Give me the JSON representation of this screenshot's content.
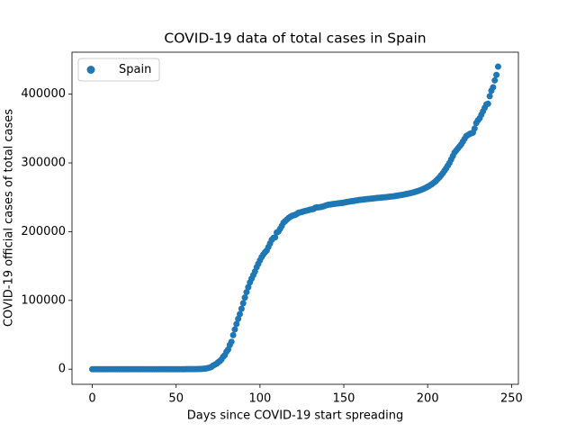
{
  "chart_data": {
    "type": "scatter",
    "title": "COVID-19 data of total cases in Spain",
    "xlabel": "Days since COVID-19 start spreading",
    "ylabel": "COVID-19 official cases of total cases",
    "legend": "upper left",
    "xlim": [
      -12.1,
      254.1
    ],
    "xticks": [
      0,
      50,
      100,
      150,
      200,
      250
    ],
    "ylim": [
      -22000,
      461000
    ],
    "yticks": [
      0,
      100000,
      200000,
      300000,
      400000
    ],
    "series": [
      {
        "name": "Spain",
        "color": "#1f77b4",
        "x": [
          0,
          1,
          2,
          3,
          4,
          5,
          6,
          7,
          8,
          9,
          10,
          11,
          12,
          13,
          14,
          15,
          16,
          17,
          18,
          19,
          20,
          21,
          22,
          23,
          24,
          25,
          26,
          27,
          28,
          29,
          30,
          31,
          32,
          33,
          34,
          35,
          36,
          37,
          38,
          39,
          40,
          41,
          42,
          43,
          44,
          45,
          46,
          47,
          48,
          49,
          50,
          51,
          52,
          53,
          54,
          55,
          56,
          57,
          58,
          59,
          60,
          61,
          62,
          63,
          64,
          65,
          66,
          67,
          68,
          69,
          70,
          71,
          72,
          73,
          74,
          75,
          76,
          77,
          78,
          79,
          80,
          81,
          82,
          83,
          84,
          85,
          86,
          87,
          88,
          89,
          90,
          91,
          92,
          93,
          94,
          95,
          96,
          97,
          98,
          99,
          100,
          101,
          102,
          103,
          104,
          105,
          106,
          107,
          108,
          109,
          110,
          111,
          112,
          113,
          114,
          115,
          116,
          117,
          118,
          119,
          120,
          121,
          122,
          123,
          124,
          125,
          126,
          127,
          128,
          129,
          130,
          131,
          132,
          133,
          134,
          135,
          136,
          137,
          138,
          139,
          140,
          141,
          142,
          143,
          144,
          145,
          146,
          147,
          148,
          149,
          150,
          151,
          152,
          153,
          154,
          155,
          156,
          157,
          158,
          159,
          160,
          161,
          162,
          163,
          164,
          165,
          166,
          167,
          168,
          169,
          170,
          171,
          172,
          173,
          174,
          175,
          176,
          177,
          178,
          179,
          180,
          181,
          182,
          183,
          184,
          185,
          186,
          187,
          188,
          189,
          190,
          191,
          192,
          193,
          194,
          195,
          196,
          197,
          198,
          199,
          200,
          201,
          202,
          203,
          204,
          205,
          206,
          207,
          208,
          209,
          210,
          211,
          212,
          213,
          214,
          215,
          216,
          217,
          218,
          219,
          220,
          221,
          222,
          223,
          224,
          225,
          226,
          227,
          228,
          229,
          230,
          231,
          232,
          233,
          234,
          235,
          236,
          237,
          238,
          239,
          240,
          241,
          242
        ],
        "values": [
          0,
          0,
          0,
          0,
          0,
          0,
          0,
          0,
          0,
          0,
          0,
          0,
          0,
          0,
          0,
          0,
          0,
          0,
          0,
          0,
          1,
          1,
          1,
          1,
          1,
          1,
          1,
          1,
          1,
          1,
          1,
          1,
          1,
          1,
          1,
          2,
          2,
          2,
          2,
          2,
          2,
          2,
          2,
          2,
          2,
          2,
          2,
          2,
          2,
          2,
          2,
          2,
          2,
          2,
          2,
          6,
          13,
          15,
          32,
          45,
          84,
          120,
          165,
          222,
          259,
          400,
          500,
          673,
          1073,
          1695,
          2277,
          3146,
          5232,
          6391,
          7798,
          9942,
          11748,
          13910,
          17963,
          20410,
          25374,
          28603,
          35136,
          39885,
          49515,
          57786,
          65719,
          73235,
          80110,
          87956,
          95923,
          104118,
          112065,
          119199,
          126168,
          131646,
          136675,
          141942,
          148220,
          153222,
          158273,
          163027,
          166831,
          170099,
          172541,
          177633,
          182816,
          188068,
          190839,
          191726,
          198674,
          200210,
          204178,
          208389,
          213024,
          215216,
          217466,
          219764,
          221447,
          222857,
          223759,
          224390,
          225886,
          227436,
          228030,
          228691,
          229540,
          230183,
          230698,
          231350,
          232037,
          232555,
          233037,
          234824,
          235290,
          235400,
          235772,
          236259,
          236899,
          237906,
          238564,
          239228,
          239479,
          239932,
          240326,
          240660,
          240978,
          241310,
          241550,
          241717,
          242280,
          242707,
          243209,
          243605,
          244109,
          244328,
          244683,
          245268,
          245575,
          245938,
          246272,
          246504,
          246752,
          247086,
          247486,
          247600,
          247900,
          248200,
          248500,
          248800,
          249100,
          249300,
          249500,
          249700,
          249900,
          250100,
          250400,
          250700,
          251000,
          251300,
          251600,
          252000,
          252400,
          252800,
          253200,
          253600,
          254100,
          254600,
          255100,
          255600,
          256200,
          256800,
          257500,
          258200,
          259000,
          259800,
          260700,
          261700,
          262800,
          264000,
          265300,
          266700,
          268300,
          270000,
          271800,
          274000,
          276500,
          279000,
          282000,
          285000,
          288500,
          292000,
          296000,
          300000,
          305000,
          310000,
          315000,
          318000,
          321000,
          324000,
          327000,
          331000,
          335000,
          339000,
          340500,
          342000,
          343000,
          344000,
          350000,
          358000,
          362000,
          365000,
          370000,
          375000,
          380000,
          385000,
          386000,
          397000,
          405000,
          410000,
          420000,
          428000,
          440000
        ]
      }
    ]
  }
}
